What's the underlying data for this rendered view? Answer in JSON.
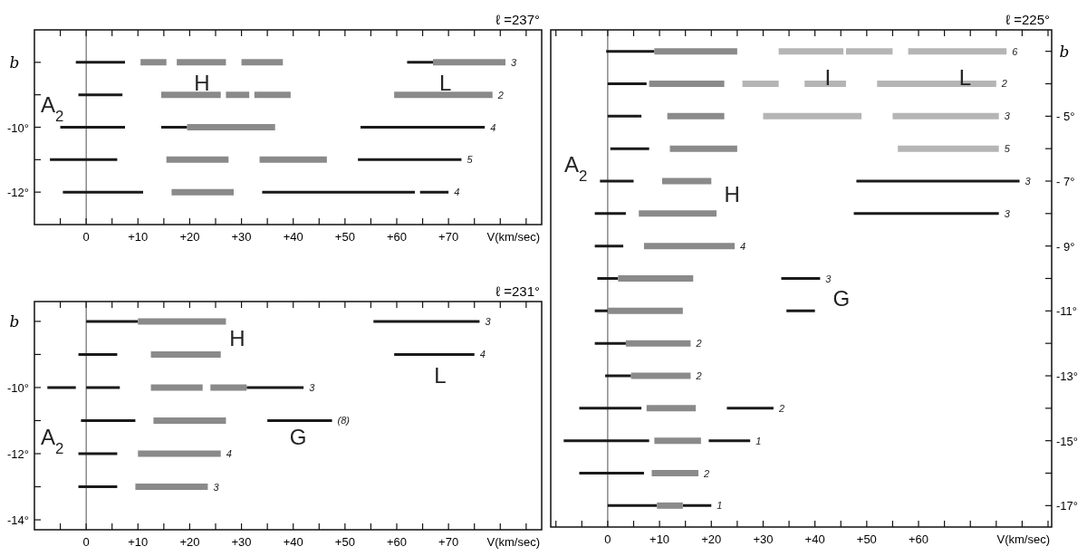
{
  "chart_data": [
    {
      "type": "line",
      "title": "ℓ =237°",
      "xlabel": "V(km/sec)",
      "ylabel": "b",
      "xlim": [
        -10,
        88
      ],
      "ylim": [
        -13,
        -7
      ],
      "xticks": [
        {
          "value": -5,
          "label": null
        },
        {
          "value": 0,
          "label": "0"
        },
        {
          "value": 5,
          "label": null
        },
        {
          "value": 10,
          "label": "+10"
        },
        {
          "value": 15,
          "label": null
        },
        {
          "value": 20,
          "label": "+20"
        },
        {
          "value": 25,
          "label": null
        },
        {
          "value": 30,
          "label": "+30"
        },
        {
          "value": 35,
          "label": null
        },
        {
          "value": 40,
          "label": "+40"
        },
        {
          "value": 45,
          "label": null
        },
        {
          "value": 50,
          "label": "+50"
        },
        {
          "value": 55,
          "label": null
        },
        {
          "value": 60,
          "label": "+60"
        },
        {
          "value": 65,
          "label": null
        },
        {
          "value": 70,
          "label": "+70"
        },
        {
          "value": 75,
          "label": null
        },
        {
          "value": 80,
          "label": null
        },
        {
          "value": 85,
          "label": null
        }
      ],
      "yticks": [
        {
          "value": -8,
          "label": null
        },
        {
          "value": -9,
          "label": null
        },
        {
          "value": -10,
          "label": "-10°"
        },
        {
          "value": -11,
          "label": null
        },
        {
          "value": -12,
          "label": "-12°"
        }
      ],
      "ref_lines": [
        {
          "axis": "x",
          "value": 0,
          "color": "#222222"
        }
      ],
      "series": [
        {
          "color": "#1a1a1a",
          "x": [
            -2,
            7.5,
            null,
            62,
            67
          ],
          "values": [
            -8,
            -8,
            null,
            -8,
            -8
          ]
        },
        {
          "color": "#8a8a8a",
          "x": [
            10.5,
            15.5,
            null,
            17.5,
            27,
            null,
            30,
            38,
            null,
            67,
            81
          ],
          "values": [
            -8,
            -8,
            null,
            -8,
            -8,
            null,
            -8,
            -8,
            null,
            -8,
            -8
          ]
        },
        {
          "color": "#1a1a1a",
          "x": [
            -1.5,
            7
          ],
          "values": [
            -9,
            -9
          ]
        },
        {
          "color": "#8a8a8a",
          "x": [
            14.5,
            26,
            null,
            27,
            31.5,
            null,
            32.5,
            39.5,
            null,
            59.5,
            78.5
          ],
          "values": [
            -9,
            -9,
            null,
            -9,
            -9,
            null,
            -9,
            -9,
            null,
            -9,
            -9
          ]
        },
        {
          "color": "#1a1a1a",
          "x": [
            -5,
            7.5,
            null,
            14.5,
            19.5,
            null,
            53,
            77
          ],
          "values": [
            -10,
            -10,
            null,
            -10,
            -10,
            null,
            -10,
            -10
          ]
        },
        {
          "color": "#8a8a8a",
          "x": [
            19.5,
            36.5
          ],
          "values": [
            -10,
            -10
          ]
        },
        {
          "color": "#1a1a1a",
          "x": [
            -7,
            6,
            null,
            52.5,
            72.5
          ],
          "values": [
            -11,
            -11,
            null,
            -11,
            -11
          ]
        },
        {
          "color": "#8a8a8a",
          "x": [
            15.5,
            27.5,
            null,
            33.5,
            46.5
          ],
          "values": [
            -11,
            -11,
            null,
            -11,
            -11
          ]
        },
        {
          "color": "#1a1a1a",
          "x": [
            -4.5,
            11,
            null,
            34,
            63.5,
            null,
            64.5,
            70
          ],
          "values": [
            -12,
            -12,
            null,
            -12,
            -12,
            null,
            -12,
            -12
          ]
        },
        {
          "color": "#8a8a8a",
          "x": [
            16.5,
            28.5
          ],
          "values": [
            -12,
            -12
          ]
        }
      ],
      "annotations": [
        "A$_{2}$",
        "H",
        "L",
        "3",
        "2",
        "4",
        "5",
        "4"
      ]
    },
    {
      "type": "line",
      "title": "ℓ =231°",
      "xlabel": "V(km/sec)",
      "ylabel": "b",
      "xlim": [
        -10,
        88
      ],
      "ylim": [
        -14.3,
        -7.4
      ],
      "xticks": [
        {
          "value": -5,
          "label": null
        },
        {
          "value": 0,
          "label": "0"
        },
        {
          "value": 5,
          "label": null
        },
        {
          "value": 10,
          "label": "+10"
        },
        {
          "value": 15,
          "label": null
        },
        {
          "value": 20,
          "label": "+20"
        },
        {
          "value": 25,
          "label": null
        },
        {
          "value": 30,
          "label": "+30"
        },
        {
          "value": 35,
          "label": null
        },
        {
          "value": 40,
          "label": "+40"
        },
        {
          "value": 45,
          "label": null
        },
        {
          "value": 50,
          "label": "+50"
        },
        {
          "value": 55,
          "label": null
        },
        {
          "value": 60,
          "label": "+60"
        },
        {
          "value": 65,
          "label": null
        },
        {
          "value": 70,
          "label": "+70"
        },
        {
          "value": 75,
          "label": null
        },
        {
          "value": 80,
          "label": null
        },
        {
          "value": 85,
          "label": null
        }
      ],
      "yticks": [
        {
          "value": -8,
          "label": null
        },
        {
          "value": -9,
          "label": null
        },
        {
          "value": -10,
          "label": "-10°"
        },
        {
          "value": -11,
          "label": null
        },
        {
          "value": -12,
          "label": "-12°"
        },
        {
          "value": -13,
          "label": null
        },
        {
          "value": -14,
          "label": "-14°"
        }
      ],
      "ref_lines": [
        {
          "axis": "x",
          "value": 0,
          "color": "#222222"
        }
      ],
      "series": [
        {
          "color": "#1a1a1a",
          "x": [
            0,
            10,
            null,
            55.5,
            76
          ],
          "values": [
            -8,
            -8,
            null,
            -8,
            -8
          ]
        },
        {
          "color": "#8a8a8a",
          "x": [
            10,
            27
          ],
          "values": [
            -8,
            -8
          ]
        },
        {
          "color": "#1a1a1a",
          "x": [
            -1.5,
            6,
            null,
            59.5,
            75
          ],
          "values": [
            -9,
            -9,
            null,
            -9,
            -9
          ]
        },
        {
          "color": "#8a8a8a",
          "x": [
            12.5,
            26
          ],
          "values": [
            -9,
            -9
          ]
        },
        {
          "color": "#1a1a1a",
          "x": [
            -7.5,
            -2,
            null,
            0,
            6.5,
            null,
            31,
            42
          ],
          "values": [
            -10,
            -10,
            null,
            -10,
            -10,
            null,
            -10,
            -10
          ]
        },
        {
          "color": "#8a8a8a",
          "x": [
            12.5,
            22.5,
            null,
            24,
            31
          ],
          "values": [
            -10,
            -10,
            null,
            -10,
            -10
          ]
        },
        {
          "color": "#1a1a1a",
          "x": [
            -1,
            9.5,
            null,
            35,
            47.5
          ],
          "values": [
            -11,
            -11,
            null,
            -11,
            -11
          ]
        },
        {
          "color": "#8a8a8a",
          "x": [
            13,
            27
          ],
          "values": [
            -11,
            -11
          ]
        },
        {
          "color": "#1a1a1a",
          "x": [
            -1.5,
            6
          ],
          "values": [
            -12,
            -12
          ]
        },
        {
          "color": "#8a8a8a",
          "x": [
            10,
            26
          ],
          "values": [
            -12,
            -12
          ]
        },
        {
          "color": "#1a1a1a",
          "x": [
            -1.5,
            6
          ],
          "values": [
            -13,
            -13
          ]
        },
        {
          "color": "#8a8a8a",
          "x": [
            9.5,
            23.5
          ],
          "values": [
            -13,
            -13
          ]
        }
      ],
      "annotations": [
        "H",
        "L",
        "A$_{2}$",
        "G",
        "3",
        "4",
        "3",
        "(8)",
        "4",
        "3"
      ]
    },
    {
      "type": "line",
      "title": "ℓ =225°",
      "xlabel": "V(km/sec)",
      "ylabel": "b",
      "xlim": [
        -11,
        85.7
      ],
      "ylim": [
        -17.66,
        -2.34
      ],
      "xticks": [
        {
          "value": -10,
          "label": null
        },
        {
          "value": -5,
          "label": null
        },
        {
          "value": 0,
          "label": "0"
        },
        {
          "value": 5,
          "label": null
        },
        {
          "value": 10,
          "label": "+10"
        },
        {
          "value": 15,
          "label": null
        },
        {
          "value": 20,
          "label": "+20"
        },
        {
          "value": 25,
          "label": null
        },
        {
          "value": 30,
          "label": "+30"
        },
        {
          "value": 35,
          "label": null
        },
        {
          "value": 40,
          "label": "+40"
        },
        {
          "value": 45,
          "label": null
        },
        {
          "value": 50,
          "label": "+50"
        },
        {
          "value": 55,
          "label": null
        },
        {
          "value": 60,
          "label": "+60"
        },
        {
          "value": 65,
          "label": null
        },
        {
          "value": 70,
          "label": null
        },
        {
          "value": 75,
          "label": null
        },
        {
          "value": 80,
          "label": null
        },
        {
          "value": 85,
          "label": null
        }
      ],
      "yticks": [
        {
          "value": -3,
          "label": null
        },
        {
          "value": -4,
          "label": null
        },
        {
          "value": -5,
          "label": "- 5°"
        },
        {
          "value": -6,
          "label": null
        },
        {
          "value": -7,
          "label": "- 7°"
        },
        {
          "value": -8,
          "label": null
        },
        {
          "value": -9,
          "label": "- 9°"
        },
        {
          "value": -10,
          "label": null
        },
        {
          "value": -11,
          "label": "-11°"
        },
        {
          "value": -12,
          "label": null
        },
        {
          "value": -13,
          "label": "-13°"
        },
        {
          "value": -14,
          "label": null
        },
        {
          "value": -15,
          "label": "-15°"
        },
        {
          "value": -16,
          "label": null
        },
        {
          "value": -17,
          "label": "-17°"
        }
      ],
      "ref_lines": [
        {
          "axis": "x",
          "value": 0,
          "color": "#222222"
        }
      ],
      "series": [
        {
          "color": "#1a1a1a",
          "x": [
            -0.3,
            9
          ],
          "values": [
            -3,
            -3
          ]
        },
        {
          "color": "#8a8a8a",
          "x": [
            9,
            25
          ],
          "values": [
            -3,
            -3
          ]
        },
        {
          "color": "#b5b5b5",
          "x": [
            33,
            45.5,
            null,
            46,
            55,
            null,
            58,
            77
          ],
          "values": [
            -3,
            -3,
            null,
            -3,
            -3,
            null,
            -3,
            -3
          ]
        },
        {
          "color": "#1a1a1a",
          "x": [
            0,
            7.5
          ],
          "values": [
            -4,
            -4
          ]
        },
        {
          "color": "#8a8a8a",
          "x": [
            8,
            22.5
          ],
          "values": [
            -4,
            -4
          ]
        },
        {
          "color": "#b5b5b5",
          "x": [
            26,
            33,
            null,
            38,
            46,
            null,
            52,
            75
          ],
          "values": [
            -4,
            -4,
            null,
            -4,
            -4,
            null,
            -4,
            -4
          ]
        },
        {
          "color": "#1a1a1a",
          "x": [
            0,
            6.5
          ],
          "values": [
            -5,
            -5
          ]
        },
        {
          "color": "#8a8a8a",
          "x": [
            11.5,
            22.5
          ],
          "values": [
            -5,
            -5
          ]
        },
        {
          "color": "#b5b5b5",
          "x": [
            30,
            49,
            null,
            55,
            75.5
          ],
          "values": [
            -5,
            -5,
            null,
            -5,
            -5
          ]
        },
        {
          "color": "#1a1a1a",
          "x": [
            0.5,
            8
          ],
          "values": [
            -6,
            -6
          ]
        },
        {
          "color": "#8a8a8a",
          "x": [
            12,
            25
          ],
          "values": [
            -6,
            -6
          ]
        },
        {
          "color": "#b5b5b5",
          "x": [
            56,
            75.5
          ],
          "values": [
            -6,
            -6
          ]
        },
        {
          "color": "#1a1a1a",
          "x": [
            -1.5,
            5,
            null,
            48,
            79.5
          ],
          "values": [
            -7,
            -7,
            null,
            -7,
            -7
          ]
        },
        {
          "color": "#8a8a8a",
          "x": [
            10.5,
            20
          ],
          "values": [
            -7,
            -7
          ]
        },
        {
          "color": "#1a1a1a",
          "x": [
            -2.5,
            3.5,
            null,
            47.5,
            75.5
          ],
          "values": [
            -8,
            -8,
            null,
            -8,
            -8
          ]
        },
        {
          "color": "#8a8a8a",
          "x": [
            6,
            21
          ],
          "values": [
            -8,
            -8
          ]
        },
        {
          "color": "#1a1a1a",
          "x": [
            -2.5,
            3
          ],
          "values": [
            -9,
            -9
          ]
        },
        {
          "color": "#8a8a8a",
          "x": [
            7,
            24.5
          ],
          "values": [
            -9,
            -9
          ]
        },
        {
          "color": "#1a1a1a",
          "x": [
            -2,
            2,
            null,
            33.5,
            41
          ],
          "values": [
            -10,
            -10,
            null,
            -10,
            -10
          ]
        },
        {
          "color": "#8a8a8a",
          "x": [
            2,
            16.5
          ],
          "values": [
            -10,
            -10
          ]
        },
        {
          "color": "#1a1a1a",
          "x": [
            -2.5,
            0,
            null,
            34.5,
            40
          ],
          "values": [
            -11,
            -11,
            null,
            -11,
            -11
          ]
        },
        {
          "color": "#8a8a8a",
          "x": [
            0,
            14.5
          ],
          "values": [
            -11,
            -11
          ]
        },
        {
          "color": "#1a1a1a",
          "x": [
            -2.5,
            3.5
          ],
          "values": [
            -12,
            -12
          ]
        },
        {
          "color": "#8a8a8a",
          "x": [
            3.5,
            16
          ],
          "values": [
            -12,
            -12
          ]
        },
        {
          "color": "#1a1a1a",
          "x": [
            -0.5,
            4.5
          ],
          "values": [
            -13,
            -13
          ]
        },
        {
          "color": "#8a8a8a",
          "x": [
            4.5,
            16
          ],
          "values": [
            -13,
            -13
          ]
        },
        {
          "color": "#1a1a1a",
          "x": [
            -5.5,
            6.5,
            null,
            23,
            32
          ],
          "values": [
            -14,
            -14,
            null,
            -14,
            -14
          ]
        },
        {
          "color": "#8a8a8a",
          "x": [
            7.5,
            17
          ],
          "values": [
            -14,
            -14
          ]
        },
        {
          "color": "#1a1a1a",
          "x": [
            -8.5,
            8,
            null,
            19.5,
            27.5
          ],
          "values": [
            -15,
            -15,
            null,
            -15,
            -15
          ]
        },
        {
          "color": "#8a8a8a",
          "x": [
            9,
            18
          ],
          "values": [
            -15,
            -15
          ]
        },
        {
          "color": "#1a1a1a",
          "x": [
            -5.5,
            7
          ],
          "values": [
            -16,
            -16
          ]
        },
        {
          "color": "#8a8a8a",
          "x": [
            8.5,
            17.5
          ],
          "values": [
            -16,
            -16
          ]
        },
        {
          "color": "#1a1a1a",
          "x": [
            0,
            9.5,
            null,
            14.5,
            20
          ],
          "values": [
            -17,
            -17,
            null,
            -17,
            -17
          ]
        },
        {
          "color": "#8a8a8a",
          "x": [
            9.5,
            14.5
          ],
          "values": [
            -17,
            -17
          ]
        }
      ],
      "annotations": [
        "I",
        "L",
        "A$_{2}$",
        "H",
        "G",
        "6",
        "2",
        "3",
        "5",
        "3",
        "3",
        "4",
        "3",
        "2",
        "2",
        "2",
        "1",
        "2",
        "1"
      ]
    }
  ]
}
